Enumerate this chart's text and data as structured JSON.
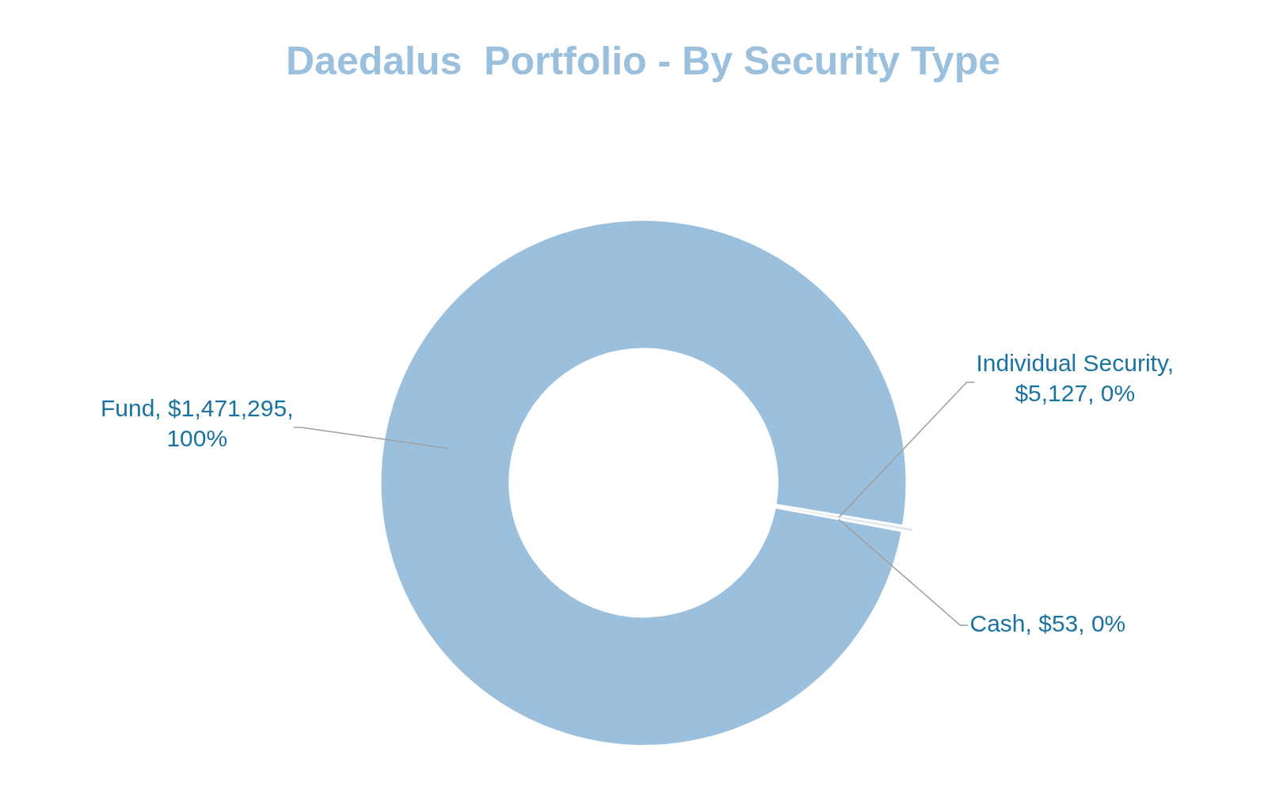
{
  "chart_data": {
    "type": "donut",
    "title": "Daedalus  Portfolio - By Security Type",
    "categories": [
      "Fund",
      "Individual Security",
      "Cash"
    ],
    "values": [
      1471295,
      5127,
      53
    ],
    "colors": [
      "#9bc0dd",
      "#dfe6ea",
      "#8fb5d4"
    ],
    "value_labels": [
      ", $1,471,295, 100%",
      ", $5,127, 0%",
      ", $53, 0%"
    ],
    "legend": false
  }
}
